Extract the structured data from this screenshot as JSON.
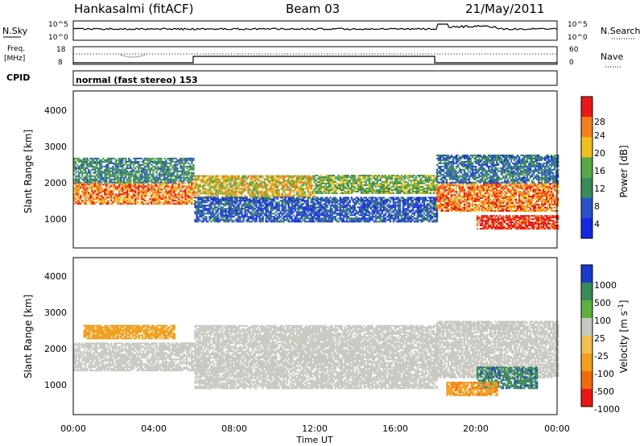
{
  "header": {
    "station": "Hankasalmi (fitACF)",
    "beam": "Beam 03",
    "date": "21/May/2011"
  },
  "noise_panel": {
    "left_label": "N.Sky",
    "right_label": "N.Search",
    "left_ticks": [
      "10^5",
      "10^0"
    ],
    "right_ticks": [
      "10^5",
      "10^0"
    ]
  },
  "freq_panel": {
    "left_label_1": "Freq.",
    "left_label_2": "[MHz]",
    "right_label": "Nave",
    "left_ticks": [
      "18",
      "8"
    ],
    "right_ticks": [
      "60",
      "0"
    ]
  },
  "cpid": {
    "label": "CPID",
    "mode_text": "normal (fast stereo) 153"
  },
  "power_panel": {
    "ylabel": "Slant Range [km]",
    "yticks": [
      "4000",
      "3000",
      "2000",
      "1000"
    ],
    "colorbar_label": "Power [dB]",
    "colorbar_ticks": [
      "28",
      "24",
      "20",
      "16",
      "12",
      "8",
      "4"
    ]
  },
  "velocity_panel": {
    "ylabel": "Slant Range [km]",
    "yticks": [
      "4000",
      "3000",
      "2000",
      "1000"
    ],
    "colorbar_label": "Velocity [m s",
    "colorbar_label_sup": "-1",
    "colorbar_label_end": "]",
    "colorbar_ticks": [
      "1000",
      "500",
      "100",
      "25",
      "-25",
      "-100",
      "-500",
      "-1000"
    ]
  },
  "x_axis": {
    "label": "Time UT",
    "ticks": [
      "00:00",
      "04:00",
      "08:00",
      "12:00",
      "16:00",
      "20:00",
      "00:00"
    ]
  },
  "chart_data": {
    "type": "heatmap",
    "title": "Hankasalmi (fitACF) Beam 03 21/May/2011",
    "xlabel": "Time UT",
    "ylabel": "Slant Range [km]",
    "xlim": [
      "00:00",
      "24:00"
    ],
    "ylim": [
      180,
      4600
    ],
    "power_colorscale": {
      "ticks": [
        4,
        8,
        12,
        16,
        20,
        24,
        28
      ],
      "colors": [
        "#1428e0",
        "#2a52c8",
        "#3a8a5a",
        "#5aa84a",
        "#f0c020",
        "#f08020",
        "#e81818"
      ]
    },
    "velocity_colorscale": {
      "ticks": [
        -1000,
        -500,
        -100,
        -25,
        25,
        100,
        500,
        1000
      ],
      "colors": [
        "#e81818",
        "#f06a10",
        "#f0a020",
        "#f0c050",
        "#c8c8c0",
        "#60b040",
        "#3a8a5a",
        "#1a3ac8"
      ]
    },
    "power_regions": [
      {
        "t0": 0.0,
        "t1": 6.0,
        "r0": 1400,
        "r1": 2000,
        "db": 24
      },
      {
        "t0": 0.0,
        "t1": 6.0,
        "r0": 2000,
        "r1": 2700,
        "db": 12
      },
      {
        "t0": 6.0,
        "t1": 12.0,
        "r0": 1600,
        "r1": 2200,
        "db": 20
      },
      {
        "t0": 6.0,
        "t1": 18.0,
        "r0": 900,
        "r1": 1600,
        "db": 8
      },
      {
        "t0": 12.0,
        "t1": 18.0,
        "r0": 1700,
        "r1": 2200,
        "db": 16
      },
      {
        "t0": 18.0,
        "t1": 24.0,
        "r0": 1200,
        "r1": 2000,
        "db": 24
      },
      {
        "t0": 18.0,
        "t1": 24.0,
        "r0": 2000,
        "r1": 2800,
        "db": 10
      },
      {
        "t0": 20.0,
        "t1": 24.0,
        "r0": 700,
        "r1": 1100,
        "db": 28
      }
    ],
    "velocity_regions": [
      {
        "t0": 0.0,
        "t1": 6.0,
        "r0": 1400,
        "r1": 2200,
        "v": 0
      },
      {
        "t0": 0.5,
        "t1": 5.0,
        "r0": 2300,
        "r1": 2700,
        "v": -300
      },
      {
        "t0": 6.0,
        "t1": 18.0,
        "r0": 900,
        "r1": 2700,
        "v": 0
      },
      {
        "t0": 18.0,
        "t1": 24.0,
        "r0": 1200,
        "r1": 2800,
        "v": 0
      },
      {
        "t0": 20.0,
        "t1": 23.0,
        "r0": 900,
        "r1": 1500,
        "v": 400
      },
      {
        "t0": 18.5,
        "t1": 21.0,
        "r0": 700,
        "r1": 1100,
        "v": -400
      }
    ]
  }
}
